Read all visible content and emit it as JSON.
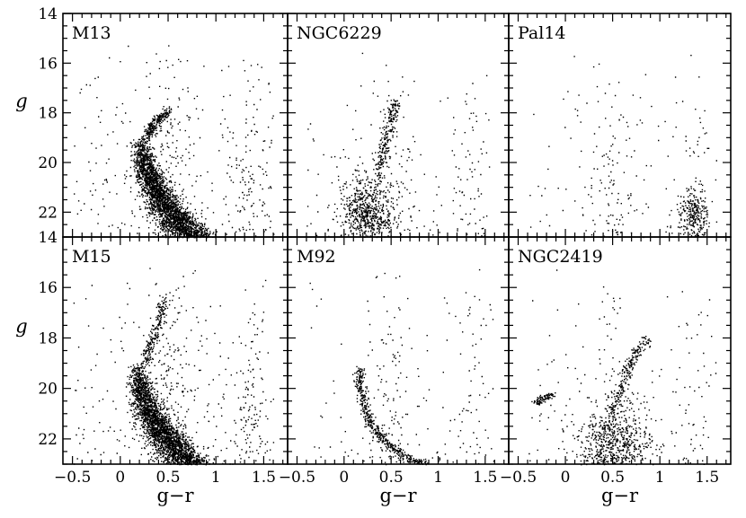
{
  "figure": {
    "description_free": true
  },
  "chart_data": {
    "type": "scatter",
    "layout": "2x3-grid",
    "xlabel": "g−r",
    "ylabel": "g",
    "xlim": [
      -0.6,
      1.75
    ],
    "ylim": [
      23,
      14
    ],
    "y_inverted": true,
    "x_ticks": [
      -0.5,
      0,
      0.5,
      1,
      1.5
    ],
    "x_tick_labels": [
      "−0.5",
      "0",
      "0.5",
      "1",
      "1.5"
    ],
    "y_ticks": [
      14,
      16,
      18,
      20,
      22
    ],
    "y_tick_labels": [
      "14",
      "16",
      "18",
      "20",
      "22"
    ],
    "grid": false,
    "marker_color": "#000000",
    "panels": [
      {
        "name": "M13",
        "row": 0,
        "col": 0,
        "features": {
          "main_sequence": {
            "x_center": 0.32,
            "x_spread": 0.28,
            "y_top": 19.0,
            "y_bottom": 23.0,
            "density": "very-high"
          },
          "red_giant_branch": [
            [
              0.28,
              19.0
            ],
            [
              0.32,
              18.6
            ],
            [
              0.4,
              18.2
            ],
            [
              0.5,
              17.9
            ]
          ],
          "field_stars": {
            "x_range": [
              -0.5,
              1.6
            ],
            "y_range": [
              15,
              23
            ],
            "density": "medium"
          }
        }
      },
      {
        "name": "NGC6229",
        "row": 0,
        "col": 1,
        "features": {
          "turnoff_clump": {
            "x_center": 0.25,
            "y_center": 22.0,
            "x_spread": 0.15,
            "y_spread": 0.7,
            "density": "high"
          },
          "giant_branch": [
            [
              0.35,
              20.5
            ],
            [
              0.45,
              19.0
            ],
            [
              0.55,
              17.5
            ]
          ],
          "field_stars": {
            "x_range": [
              -0.4,
              1.6
            ],
            "y_range": [
              15,
              23
            ],
            "density": "low"
          }
        }
      },
      {
        "name": "Pal14",
        "row": 0,
        "col": 2,
        "features": {
          "field_stars": {
            "x_range": [
              -0.4,
              1.6
            ],
            "y_range": [
              15,
              23
            ],
            "density": "low"
          },
          "red_field_clump": {
            "x_center": 1.35,
            "y_center": 22.0,
            "density": "low"
          }
        }
      },
      {
        "name": "M15",
        "row": 1,
        "col": 0,
        "features": {
          "main_sequence": {
            "x_center": 0.28,
            "x_spread": 0.3,
            "y_top": 19.0,
            "y_bottom": 23.0,
            "density": "very-high"
          },
          "red_giant_branch": [
            [
              0.25,
              19.0
            ],
            [
              0.32,
              18.2
            ],
            [
              0.4,
              17.5
            ],
            [
              0.45,
              16.5
            ]
          ],
          "field_stars": {
            "x_range": [
              -0.5,
              1.6
            ],
            "y_range": [
              15,
              23
            ],
            "density": "medium"
          }
        }
      },
      {
        "name": "M92",
        "row": 1,
        "col": 1,
        "features": {
          "main_sequence_arc": [
            [
              0.15,
              19.2
            ],
            [
              0.18,
              20.2
            ],
            [
              0.25,
              21.2
            ],
            [
              0.4,
              22.0
            ],
            [
              0.6,
              22.6
            ],
            [
              0.85,
              23.0
            ]
          ],
          "field_stars": {
            "x_range": [
              -0.4,
              1.6
            ],
            "y_range": [
              15,
              23
            ],
            "density": "low"
          }
        }
      },
      {
        "name": "NGC2419",
        "row": 1,
        "col": 2,
        "features": {
          "horizontal_branch": [
            [
              -0.3,
              20.6
            ],
            [
              -0.25,
              20.4
            ],
            [
              -0.15,
              20.2
            ]
          ],
          "red_giant_branch": [
            [
              0.5,
              21.0
            ],
            [
              0.58,
              20.0
            ],
            [
              0.68,
              19.0
            ],
            [
              0.85,
              18.0
            ]
          ],
          "turnoff_clump": {
            "x_center": 0.5,
            "y_center": 22.2,
            "x_spread": 0.2,
            "y_spread": 0.8,
            "density": "high"
          },
          "field_stars": {
            "x_range": [
              -0.4,
              1.6
            ],
            "y_range": [
              15,
              23
            ],
            "density": "low"
          }
        }
      }
    ]
  }
}
